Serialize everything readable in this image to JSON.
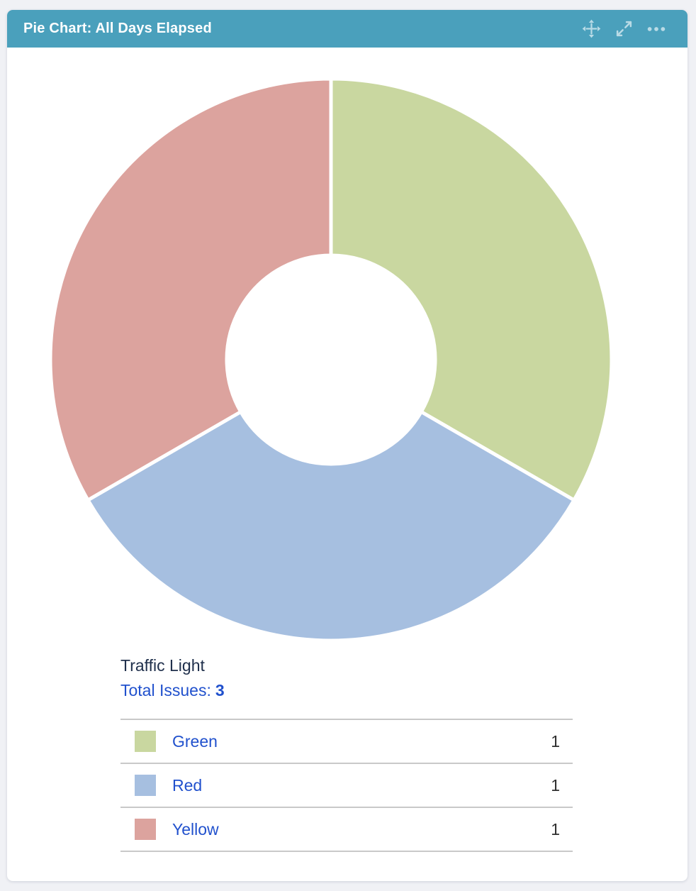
{
  "header": {
    "title": "Pie Chart: All Days Elapsed",
    "controls": {
      "move_tooltip": "Move",
      "expand_tooltip": "Expand",
      "more_tooltip": "More options"
    }
  },
  "chart_data": {
    "type": "pie",
    "style": "donut",
    "title": "Traffic Light",
    "total_label": "Total Issues:",
    "total": 3,
    "categories": [
      "Green",
      "Red",
      "Yellow"
    ],
    "values": [
      1,
      1,
      1
    ],
    "slice_colors": [
      "#c9d7a0",
      "#a6bfe0",
      "#dca39e"
    ],
    "start_angle_deg": 0,
    "direction": "clockwise",
    "inner_radius_ratio": 0.37,
    "slice_gap_color": "#ffffff",
    "legend_position": "bottom"
  },
  "colors": {
    "page_bg": "#f0f1f5",
    "card_bg": "#ffffff",
    "header_bg": "#4aa0bc",
    "header_text": "#ffffff",
    "header_icon": "#b9dbe6",
    "link": "#2151cd",
    "heading_text": "#20304c",
    "value_text": "#2f2f2f",
    "divider": "#c9c9c9"
  }
}
